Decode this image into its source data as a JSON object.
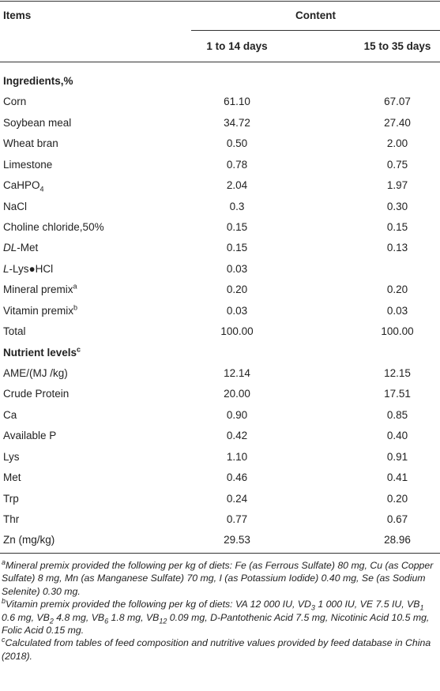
{
  "header": {
    "items": "Items",
    "content": "Content",
    "col1": "1 to 14 days",
    "col2": "15 to 35 days"
  },
  "table": {
    "sections": [
      {
        "title": [
          "Ingredients,%"
        ],
        "rows": [
          {
            "item": [
              "Corn"
            ],
            "values": [
              "61.10",
              "67.07"
            ]
          },
          {
            "item": [
              "Soybean meal"
            ],
            "values": [
              "34.72",
              "27.40"
            ]
          },
          {
            "item": [
              "Wheat bran"
            ],
            "values": [
              "0.50",
              "2.00"
            ]
          },
          {
            "item": [
              "Limestone"
            ],
            "values": [
              "0.78",
              "0.75"
            ]
          },
          {
            "item": [
              "CaHPO",
              {
                "sub": "4"
              }
            ],
            "values": [
              "2.04",
              "1.97"
            ]
          },
          {
            "item": [
              "NaCl"
            ],
            "values": [
              "0.3",
              "0.30"
            ]
          },
          {
            "item": [
              "Choline chloride,50%"
            ],
            "values": [
              "0.15",
              "0.15"
            ]
          },
          {
            "item": [
              {
                "i": "DL"
              },
              "-Met"
            ],
            "values": [
              "0.15",
              "0.13"
            ]
          },
          {
            "item": [
              {
                "i": "L"
              },
              "-Lys●HCl"
            ],
            "values": [
              "0.03"
            ]
          },
          {
            "item": [
              "Mineral premix",
              {
                "sup": "a"
              }
            ],
            "values": [
              "0.20",
              "0.20"
            ]
          },
          {
            "item": [
              "Vitamin premix",
              {
                "sup": "b"
              }
            ],
            "values": [
              "0.03",
              "0.03"
            ]
          },
          {
            "item": [
              "Total"
            ],
            "values": [
              "100.00",
              "100.00"
            ]
          }
        ]
      },
      {
        "title": [
          "Nutrient levels",
          {
            "sup": "c"
          }
        ],
        "rows": [
          {
            "item": [
              "AME/(MJ /kg)"
            ],
            "values": [
              "12.14",
              "12.15"
            ]
          },
          {
            "item": [
              "Crude Protein"
            ],
            "values": [
              "20.00",
              "17.51"
            ]
          },
          {
            "item": [
              "Ca"
            ],
            "values": [
              "0.90",
              "0.85"
            ]
          },
          {
            "item": [
              "Available P"
            ],
            "values": [
              "0.42",
              "0.40"
            ]
          },
          {
            "item": [
              "Lys"
            ],
            "values": [
              "1.10",
              "0.91"
            ]
          },
          {
            "item": [
              "Met"
            ],
            "values": [
              "0.46",
              "0.41"
            ]
          },
          {
            "item": [
              "Trp"
            ],
            "values": [
              "0.24",
              "0.20"
            ]
          },
          {
            "item": [
              "Thr"
            ],
            "values": [
              "0.77",
              "0.67"
            ]
          },
          {
            "item": [
              "Zn (mg/kg)"
            ],
            "values": [
              "29.53",
              "28.96"
            ]
          }
        ]
      }
    ]
  },
  "footnotes": [
    [
      {
        "sup": "a"
      },
      "Mineral premix provided the following per kg of diets: Fe (as Ferrous Sulfate) 80 mg, Cu (as Copper Sulfate) 8 mg, Mn (as Manganese Sulfate) 70 mg, I (as Potassium Iodide) 0.40 mg, Se (as Sodium Selenite) 0.30 mg."
    ],
    [
      {
        "sup": "b"
      },
      "Vitamin premix provided the following per kg of diets: VA 12 000 IU, VD",
      {
        "sub": "3"
      },
      " 1 000 IU, VE 7.5 IU, VB",
      {
        "sub": "1"
      },
      " 0.6 mg, VB",
      {
        "sub": "2"
      },
      " 4.8 mg, VB",
      {
        "sub": "6"
      },
      " 1.8 mg, VB",
      {
        "sub": "12"
      },
      " 0.09 mg, D-Pantothenic Acid 7.5 mg, Nicotinic Acid 10.5 mg, Folic Acid 0.15 mg."
    ],
    [
      {
        "sup": "c"
      },
      "Calculated from tables of feed composition and nutritive values provided by feed database in China (2018)."
    ]
  ]
}
